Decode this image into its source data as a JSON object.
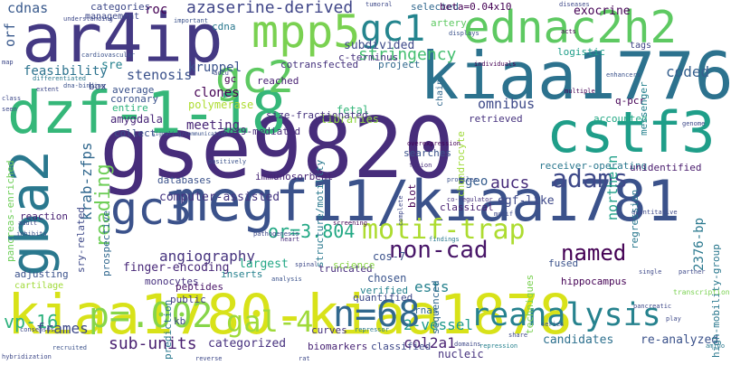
{
  "words": [
    {
      "text": "gse9820",
      "color": "#472d7b"
    },
    {
      "text": "megf11/kiaa1781",
      "color": "#3b528b"
    },
    {
      "text": "kiaa1780-kiaa1878",
      "color": "#d8e219"
    },
    {
      "text": "ar4ip",
      "color": "#443983"
    },
    {
      "text": "kiaa1776",
      "color": "#2c728e"
    },
    {
      "text": "dzf-1-18",
      "color": "#35b779"
    },
    {
      "text": "ednac2h2",
      "color": "#5ec962"
    },
    {
      "text": "mpp5",
      "color": "#7ad151"
    },
    {
      "text": "cstf3",
      "color": "#1f9e89"
    },
    {
      "text": "gba2",
      "color": "#2a788e"
    },
    {
      "text": "gc2",
      "color": "#5ec962"
    },
    {
      "text": "gc1",
      "color": "#25858e"
    },
    {
      "text": "gc3",
      "color": "#3b528b"
    },
    {
      "text": "p=.002",
      "color": "#86d549"
    },
    {
      "text": "n=68",
      "color": "#31688e"
    },
    {
      "text": "gal-4",
      "color": "#9fda3a"
    },
    {
      "text": "reanalysis",
      "color": "#26828e"
    },
    {
      "text": "motif-trap",
      "color": "#addc30"
    },
    {
      "text": "adams",
      "color": "#3e4989"
    },
    {
      "text": "named",
      "color": "#440154"
    },
    {
      "text": "non-cad",
      "color": "#481668"
    },
    {
      "text": "azaserine-derived",
      "color": "#404688"
    },
    {
      "text": "or=3.804",
      "color": "#22a884"
    },
    {
      "text": "stringency",
      "color": "#44bf70"
    },
    {
      "text": "angiography",
      "color": "#46337e"
    },
    {
      "text": "vp-16",
      "color": "#2db27d"
    },
    {
      "text": "sub-units",
      "color": "#481f70"
    },
    {
      "text": "frames",
      "color": "#3e4989"
    },
    {
      "text": "krab-zfps",
      "color": "#31688e"
    },
    {
      "text": "reading",
      "color": "#6ece58"
    },
    {
      "text": "2-vessel",
      "color": "#1f9a8a"
    },
    {
      "text": "col2a1",
      "color": "#482071"
    },
    {
      "text": "aucs",
      "color": "#472c7a"
    },
    {
      "text": "geo",
      "color": "#365d8d"
    },
    {
      "text": "ests",
      "color": "#26828e"
    },
    {
      "text": "coded",
      "color": "#355f8d"
    },
    {
      "text": "stenosis",
      "color": "#3b528b"
    },
    {
      "text": "clones",
      "color": "#440154"
    },
    {
      "text": "meeting",
      "color": "#482576"
    },
    {
      "text": "omnibus",
      "color": "#3e4a89"
    },
    {
      "text": "egf-like",
      "color": "#3e4989"
    },
    {
      "text": "northern",
      "color": "#1fa088"
    },
    {
      "text": "2376-bp",
      "color": "#2a788e"
    },
    {
      "text": "cdnas",
      "color": "#38598c"
    },
    {
      "text": "orf",
      "color": "#38588c"
    },
    {
      "text": "roc",
      "color": "#440154"
    },
    {
      "text": "cdna",
      "color": "#2a788e"
    },
    {
      "text": "kruppel",
      "color": "#3b528b"
    },
    {
      "text": "amygdala",
      "color": "#482677"
    },
    {
      "text": "feasibility",
      "color": "#2c738e"
    },
    {
      "text": "sre",
      "color": "#26828e"
    },
    {
      "text": "subdivided",
      "color": "#3e4989"
    },
    {
      "text": "logistic",
      "color": "#1f9e89"
    },
    {
      "text": "exocrine",
      "color": "#440154"
    },
    {
      "text": "tags",
      "color": "#414487"
    },
    {
      "text": "fetal",
      "color": "#35b779"
    },
    {
      "text": "libraries",
      "color": "#90d743"
    },
    {
      "text": "retrieved",
      "color": "#46327e"
    },
    {
      "text": "accounted",
      "color": "#22a884"
    },
    {
      "text": "q-pcr",
      "color": "#440154"
    },
    {
      "text": "computer-assisted",
      "color": "#453581"
    },
    {
      "text": "receiver-operating",
      "color": "#2a778e"
    },
    {
      "text": "unidentified",
      "color": "#481a6c"
    },
    {
      "text": "finger-encoding",
      "color": "#482878"
    },
    {
      "text": "monocytes",
      "color": "#46307e"
    },
    {
      "text": "largest",
      "color": "#22a785"
    },
    {
      "text": "cos-7",
      "color": "#3b528b"
    },
    {
      "text": "chosen",
      "color": "#3a548c"
    },
    {
      "text": "truncated",
      "color": "#472d7b"
    },
    {
      "text": "structure/motility",
      "color": "#2a788e"
    },
    {
      "text": "science",
      "color": "#89d548"
    },
    {
      "text": "fused",
      "color": "#3b528b"
    },
    {
      "text": "hippocampus",
      "color": "#440154"
    },
    {
      "text": "peptides",
      "color": "#481467"
    },
    {
      "text": "public",
      "color": "#433e85"
    },
    {
      "text": "categorized",
      "color": "#46307e"
    },
    {
      "text": "candidates",
      "color": "#2d708e"
    },
    {
      "text": "re-analyzed",
      "color": "#3b528b"
    },
    {
      "text": "biomarkers",
      "color": "#482475"
    },
    {
      "text": "classified",
      "color": "#3e4989"
    },
    {
      "text": "nucleic",
      "color": "#46327e"
    },
    {
      "text": "high-mobility-group",
      "color": "#2a788e"
    },
    {
      "text": "prospective",
      "color": "#31688e"
    },
    {
      "text": "sry-related",
      "color": "#3e4989"
    },
    {
      "text": "pancreas-enriched",
      "color": "#6ece58"
    },
    {
      "text": "adjusting",
      "color": "#3b528b"
    },
    {
      "text": "cartilage",
      "color": "#a0da39"
    },
    {
      "text": "reaction",
      "color": "#482173"
    },
    {
      "text": "databases",
      "color": "#3b528b"
    },
    {
      "text": "immunosorbent",
      "color": "#482576"
    },
    {
      "text": "sox9-mediated",
      "color": "#472c7a"
    },
    {
      "text": "size-fractionated",
      "color": "#46337e"
    },
    {
      "text": "c-terminus",
      "color": "#46327e"
    },
    {
      "text": "reached",
      "color": "#482173"
    },
    {
      "text": "cotransfected",
      "color": "#46337e"
    },
    {
      "text": "polymerase",
      "color": "#addc30"
    },
    {
      "text": "average",
      "color": "#3b528b"
    },
    {
      "text": "coronary",
      "color": "#3b528b"
    },
    {
      "text": "entire",
      "color": "#2db27d"
    },
    {
      "text": "collect",
      "color": "#3b528b"
    },
    {
      "text": "categories",
      "color": "#3e4989"
    },
    {
      "text": "management",
      "color": "#3e4989"
    },
    {
      "text": "project",
      "color": "#31688e"
    },
    {
      "text": "selected",
      "color": "#31688e"
    },
    {
      "text": "beta=0.04x10",
      "color": "#440154"
    },
    {
      "text": "artery",
      "color": "#5ec962"
    },
    {
      "text": "messenger",
      "color": "#26828e"
    },
    {
      "text": "searches",
      "color": "#3b528b"
    },
    {
      "text": "verified",
      "color": "#26828e"
    },
    {
      "text": "quantified",
      "color": "#3e4989"
    },
    {
      "text": "sequenced",
      "color": "#31688e"
    },
    {
      "text": "curves",
      "color": "#46327e"
    },
    {
      "text": "rnas",
      "color": "#31688e"
    },
    {
      "text": "inserts",
      "color": "#26828e"
    },
    {
      "text": "prediction",
      "color": "#2a788e"
    },
    {
      "text": "kb",
      "color": "#3e4989"
    },
    {
      "text": "box",
      "color": "#3e4989"
    },
    {
      "text": "gc",
      "color": "#440154"
    },
    {
      "text": "chondrocyte",
      "color": "#9fda3a"
    },
    {
      "text": "blot",
      "color": "#440154"
    },
    {
      "text": "classical",
      "color": "#482071"
    },
    {
      "text": "techniques",
      "color": "#7ad151"
    },
    {
      "text": "regression",
      "color": "#2a788e"
    },
    {
      "text": "chain",
      "color": "#31688e"
    },
    {
      "text": "repression",
      "color": "#26828e"
    },
    {
      "text": "overexpression",
      "color": "#440154"
    },
    {
      "text": "fusion",
      "color": "#472d7b"
    },
    {
      "text": "profiles",
      "color": "#3b528b"
    },
    {
      "text": "co-regulator",
      "color": "#46327e"
    },
    {
      "text": "complete",
      "color": "#3e4989"
    },
    {
      "text": "screening",
      "color": "#440154"
    },
    {
      "text": "findings",
      "color": "#2a788e"
    },
    {
      "text": "heart",
      "color": "#472d7b"
    },
    {
      "text": "consensus",
      "color": "#3e4989"
    },
    {
      "text": "recruited",
      "color": "#3b528b"
    },
    {
      "text": "hybridization",
      "color": "#3e4989"
    },
    {
      "text": "signaling/communication",
      "color": "#3b528b"
    },
    {
      "text": "dna-binding",
      "color": "#3b528b"
    },
    {
      "text": "cardiovascular",
      "color": "#3b528b"
    },
    {
      "text": "understanding",
      "color": "#3e4989"
    },
    {
      "text": "differentiated",
      "color": "#2a788e"
    },
    {
      "text": "important",
      "color": "#3b528b"
    },
    {
      "text": "tumoral",
      "color": "#3e4989"
    },
    {
      "text": "diseases",
      "color": "#3e4989"
    },
    {
      "text": "displays",
      "color": "#3b528b"
    },
    {
      "text": "acts",
      "color": "#440154"
    },
    {
      "text": "enhancers",
      "color": "#3b528b"
    },
    {
      "text": "individuals",
      "color": "#440154"
    },
    {
      "text": "multiple",
      "color": "#440154"
    },
    {
      "text": "quantitative",
      "color": "#3e4989"
    },
    {
      "text": "single",
      "color": "#3e4989"
    },
    {
      "text": "partner",
      "color": "#3e4989"
    },
    {
      "text": "series",
      "color": "#3b528b"
    },
    {
      "text": "share",
      "color": "#3e4989"
    },
    {
      "text": "play",
      "color": "#3e4989"
    },
    {
      "text": "amino",
      "color": "#2a788e"
    },
    {
      "text": "domains",
      "color": "#3e4989"
    },
    {
      "text": "reverse",
      "color": "#3e4989"
    },
    {
      "text": "adult",
      "color": "#3e4989"
    },
    {
      "text": "inhibits",
      "color": "#3b528b"
    },
    {
      "text": "extent",
      "color": "#3e4989"
    },
    {
      "text": "accu",
      "color": "#3e4989"
    },
    {
      "text": "genome",
      "color": "#3e4989"
    },
    {
      "text": "pathogenesis",
      "color": "#3e4989"
    },
    {
      "text": "positively",
      "color": "#3b528b"
    },
    {
      "text": "spinal",
      "color": "#3e4989"
    },
    {
      "text": "repressor",
      "color": "#2a788e"
    },
    {
      "text": "analysis",
      "color": "#3b528b"
    },
    {
      "text": "rat",
      "color": "#3e4989"
    },
    {
      "text": "transcription",
      "color": "#7ad151"
    },
    {
      "text": "pancreatic",
      "color": "#3e4989"
    },
    {
      "text": "motif",
      "color": "#3e4989"
    },
    {
      "text": "map",
      "color": "#3e4989"
    },
    {
      "text": "class",
      "color": "#3e4989"
    },
    {
      "text": "seen",
      "color": "#3e4989"
    }
  ]
}
